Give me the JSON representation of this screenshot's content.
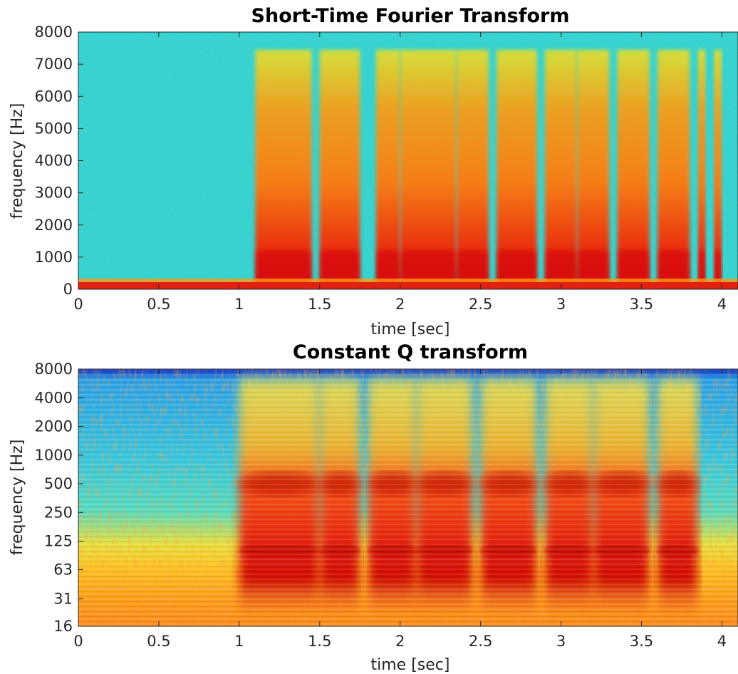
{
  "chart_data": [
    {
      "type": "heatmap",
      "title": "Short-Time Fourier Transform",
      "xlabel": "time [sec]",
      "ylabel": "frequency [Hz]",
      "x_ticks": [
        "0",
        "0.5",
        "1",
        "1.5",
        "2",
        "2.5",
        "3",
        "3.5",
        "4"
      ],
      "x_tick_values": [
        0,
        0.5,
        1,
        1.5,
        2,
        2.5,
        3,
        3.5,
        4
      ],
      "y_ticks": [
        "0",
        "1000",
        "2000",
        "3000",
        "4000",
        "5000",
        "6000",
        "7000",
        "8000"
      ],
      "y_tick_values": [
        0,
        1000,
        2000,
        3000,
        4000,
        5000,
        6000,
        7000,
        8000
      ],
      "xlim": [
        0,
        4.1
      ],
      "ylim": [
        0,
        8000
      ],
      "y_scale": "linear",
      "colormap": "jet",
      "colorbar": false,
      "speech_segments_sec": [
        [
          1.1,
          1.45
        ],
        [
          1.5,
          1.75
        ],
        [
          1.85,
          2.0
        ],
        [
          2.0,
          2.35
        ],
        [
          2.35,
          2.55
        ],
        [
          2.6,
          2.85
        ],
        [
          2.9,
          3.1
        ],
        [
          3.1,
          3.3
        ],
        [
          3.35,
          3.55
        ],
        [
          3.6,
          3.8
        ],
        [
          3.85,
          3.9
        ],
        [
          3.95,
          4.0
        ]
      ]
    },
    {
      "type": "heatmap",
      "title": "Constant Q transform",
      "xlabel": "time [sec]",
      "ylabel": "frequency [Hz]",
      "x_ticks": [
        "0",
        "0.5",
        "1",
        "1.5",
        "2",
        "2.5",
        "3",
        "3.5",
        "4"
      ],
      "x_tick_values": [
        0,
        0.5,
        1,
        1.5,
        2,
        2.5,
        3,
        3.5,
        4
      ],
      "y_ticks": [
        "16",
        "31",
        "63",
        "125",
        "250",
        "500",
        "1000",
        "2000",
        "4000",
        "8000"
      ],
      "y_tick_values": [
        16,
        31,
        63,
        125,
        250,
        500,
        1000,
        2000,
        4000,
        8000
      ],
      "xlim": [
        0,
        4.1
      ],
      "ylim": [
        16,
        8000
      ],
      "y_scale": "log",
      "colormap": "jet",
      "colorbar": false,
      "speech_segments_sec": [
        [
          1.0,
          1.5
        ],
        [
          1.5,
          1.75
        ],
        [
          1.8,
          2.1
        ],
        [
          2.1,
          2.45
        ],
        [
          2.5,
          2.85
        ],
        [
          2.9,
          3.2
        ],
        [
          3.2,
          3.55
        ],
        [
          3.6,
          3.85
        ]
      ]
    }
  ]
}
